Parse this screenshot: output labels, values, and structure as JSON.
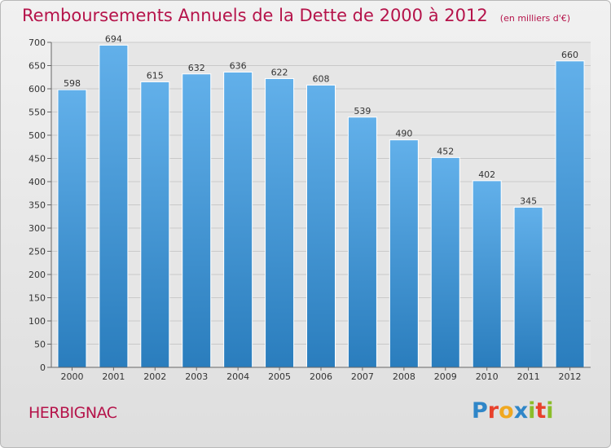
{
  "title": "Remboursements Annuels de la Dette de 2000 à 2012",
  "unit_note": "(en milliers d'€)",
  "commune": "HERBIGNAC",
  "brand": {
    "letters": [
      {
        "ch": "P",
        "color": "#2f86c8"
      },
      {
        "ch": "r",
        "color": "#e8412c"
      },
      {
        "ch": "o",
        "color": "#f0a820"
      },
      {
        "ch": "x",
        "color": "#2f86c8"
      },
      {
        "ch": "i",
        "color": "#8bbd2a"
      },
      {
        "ch": "t",
        "color": "#e8412c"
      },
      {
        "ch": "i",
        "color": "#8bbd2a"
      }
    ]
  },
  "colors": {
    "title": "#b5134a",
    "bar_top": "#62b0ea",
    "bar_bottom": "#2a7dbd",
    "grid": "#c9c9c9"
  },
  "chart_data": {
    "type": "bar",
    "categories": [
      "2000",
      "2001",
      "2002",
      "2003",
      "2004",
      "2005",
      "2006",
      "2007",
      "2008",
      "2009",
      "2010",
      "2011",
      "2012"
    ],
    "values": [
      598,
      694,
      615,
      632,
      636,
      622,
      608,
      539,
      490,
      452,
      402,
      345,
      660
    ],
    "ylim": [
      0,
      700
    ],
    "yticks": [
      0,
      50,
      100,
      150,
      200,
      250,
      300,
      350,
      400,
      450,
      500,
      550,
      600,
      650,
      700
    ],
    "grid": true,
    "legend": "none"
  }
}
